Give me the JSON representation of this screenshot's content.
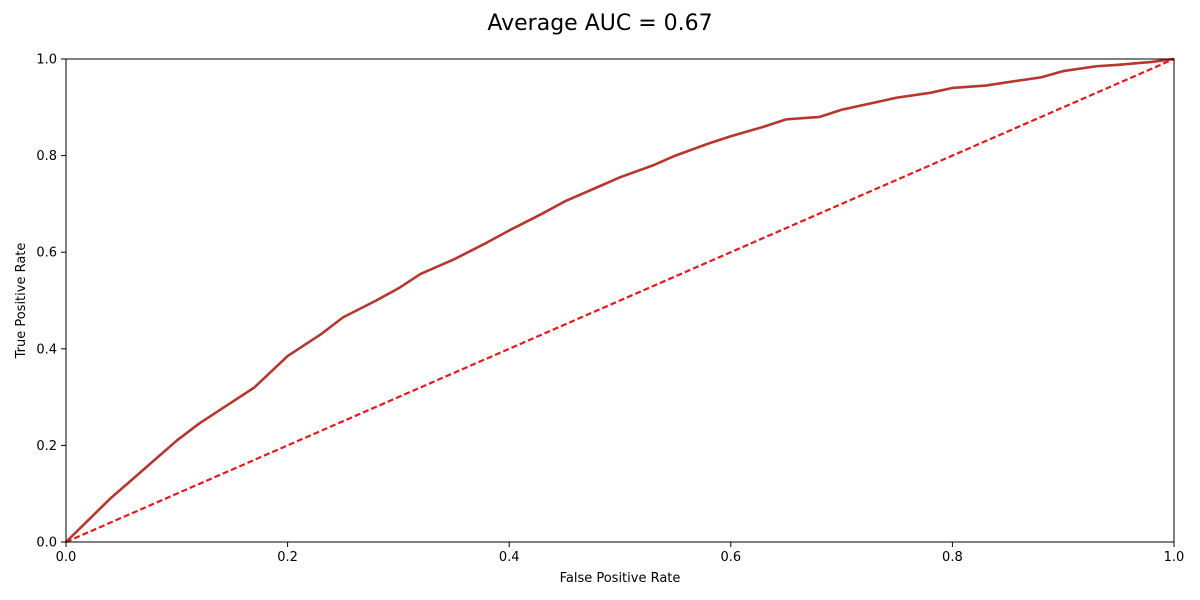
{
  "chart_data": {
    "type": "line",
    "title": "Average AUC = 0.67",
    "xlabel": "False Positive Rate",
    "ylabel": "True Positive Rate",
    "xlim": [
      0.0,
      1.0
    ],
    "ylim": [
      0.0,
      1.0
    ],
    "grid": false,
    "xticks": [
      "0.0",
      "0.2",
      "0.4",
      "0.6",
      "0.8",
      "1.0"
    ],
    "yticks": [
      "0.0",
      "0.2",
      "0.4",
      "0.6",
      "0.8",
      "1.0"
    ],
    "series": [
      {
        "style": "solid",
        "color": "#b5372f",
        "x": [
          0.0,
          0.02,
          0.04,
          0.06,
          0.08,
          0.1,
          0.12,
          0.15,
          0.17,
          0.2,
          0.23,
          0.25,
          0.28,
          0.3,
          0.32,
          0.35,
          0.38,
          0.4,
          0.43,
          0.45,
          0.48,
          0.5,
          0.53,
          0.55,
          0.58,
          0.6,
          0.63,
          0.65,
          0.68,
          0.7,
          0.73,
          0.75,
          0.78,
          0.8,
          0.83,
          0.85,
          0.88,
          0.9,
          0.93,
          0.95,
          0.98,
          1.0
        ],
        "y": [
          0.0,
          0.045,
          0.09,
          0.13,
          0.17,
          0.21,
          0.245,
          0.29,
          0.32,
          0.385,
          0.43,
          0.465,
          0.5,
          0.525,
          0.555,
          0.585,
          0.62,
          0.645,
          0.68,
          0.705,
          0.735,
          0.755,
          0.78,
          0.8,
          0.825,
          0.84,
          0.86,
          0.875,
          0.88,
          0.895,
          0.91,
          0.92,
          0.93,
          0.94,
          0.945,
          0.952,
          0.962,
          0.975,
          0.985,
          0.988,
          0.994,
          1.0
        ]
      },
      {
        "style": "dashed",
        "color": "#e41a1c",
        "x": [
          0.0,
          1.0
        ],
        "y": [
          0.0,
          1.0
        ]
      }
    ]
  }
}
